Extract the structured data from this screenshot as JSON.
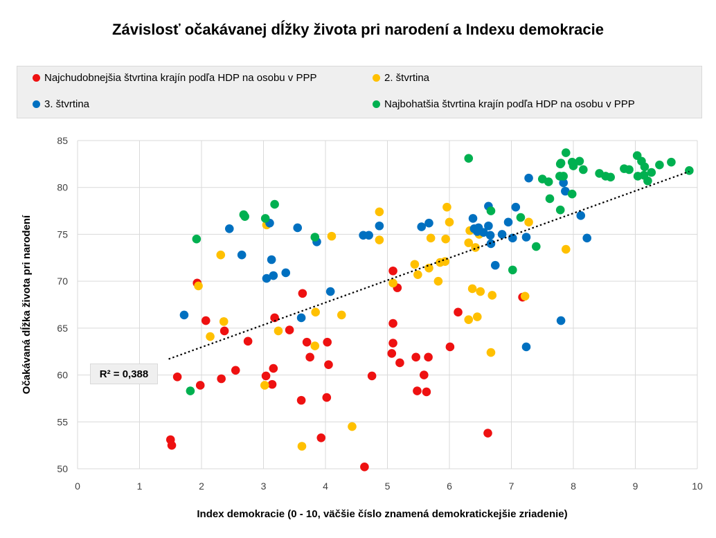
{
  "chart_data": {
    "type": "scatter",
    "title": "Závislosť očakávanej dĺžky života pri narodení a Indexu demokracie",
    "xlabel": "Index demokracie (0 - 10, väčšie číslo znamená demokratickejšie zriadenie)",
    "ylabel": "Očakávaná dĺžka života pri narodení",
    "xlim": [
      0,
      10
    ],
    "ylim": [
      50,
      85
    ],
    "xticks": [
      "0",
      "1",
      "2",
      "3",
      "4",
      "5",
      "6",
      "7",
      "8",
      "9",
      "10"
    ],
    "yticks": [
      "50",
      "55",
      "60",
      "65",
      "70",
      "75",
      "80",
      "85"
    ],
    "grid": true,
    "legend_position": "top",
    "r2_label": "R² = 0,388",
    "trendline": {
      "x": [
        1.47,
        9.87
      ],
      "y": [
        61.7,
        81.7
      ]
    },
    "series": [
      {
        "name": "Najchudobnejšia štvrtina krajín podľa HDP na osobu v PPP",
        "color": "#ee1111",
        "points": [
          [
            1.5,
            53.1
          ],
          [
            1.52,
            52.5
          ],
          [
            1.61,
            59.8
          ],
          [
            1.93,
            69.8
          ],
          [
            1.98,
            58.9
          ],
          [
            2.07,
            65.8
          ],
          [
            2.32,
            59.6
          ],
          [
            2.37,
            64.7
          ],
          [
            2.55,
            60.5
          ],
          [
            2.75,
            63.6
          ],
          [
            3.04,
            59.9
          ],
          [
            3.14,
            59.0
          ],
          [
            3.16,
            60.7
          ],
          [
            3.18,
            66.1
          ],
          [
            3.42,
            64.8
          ],
          [
            3.61,
            57.3
          ],
          [
            3.63,
            68.7
          ],
          [
            3.7,
            63.5
          ],
          [
            3.75,
            61.9
          ],
          [
            3.93,
            53.3
          ],
          [
            4.02,
            57.6
          ],
          [
            4.03,
            63.5
          ],
          [
            4.05,
            61.1
          ],
          [
            4.63,
            50.2
          ],
          [
            4.75,
            59.9
          ],
          [
            5.07,
            62.3
          ],
          [
            5.09,
            71.1
          ],
          [
            5.09,
            65.5
          ],
          [
            5.09,
            63.4
          ],
          [
            5.16,
            69.3
          ],
          [
            5.2,
            61.3
          ],
          [
            5.46,
            61.9
          ],
          [
            5.48,
            58.3
          ],
          [
            5.59,
            60.0
          ],
          [
            5.63,
            58.2
          ],
          [
            5.66,
            61.9
          ],
          [
            6.01,
            63.0
          ],
          [
            6.14,
            66.7
          ],
          [
            6.62,
            53.8
          ],
          [
            7.18,
            68.3
          ]
        ]
      },
      {
        "name": "2. štvrtina",
        "color": "#ffc000",
        "points": [
          [
            1.95,
            69.5
          ],
          [
            2.14,
            64.1
          ],
          [
            2.31,
            72.8
          ],
          [
            2.36,
            65.7
          ],
          [
            3.02,
            58.9
          ],
          [
            3.05,
            76.0
          ],
          [
            3.24,
            64.7
          ],
          [
            3.62,
            52.4
          ],
          [
            3.83,
            63.1
          ],
          [
            3.84,
            66.7
          ],
          [
            4.1,
            74.8
          ],
          [
            4.26,
            66.4
          ],
          [
            4.43,
            54.5
          ],
          [
            4.87,
            77.4
          ],
          [
            4.87,
            74.4
          ],
          [
            5.09,
            69.8
          ],
          [
            5.44,
            71.8
          ],
          [
            5.49,
            70.7
          ],
          [
            5.67,
            71.4
          ],
          [
            5.7,
            74.6
          ],
          [
            5.82,
            70.0
          ],
          [
            5.85,
            72.0
          ],
          [
            5.93,
            72.1
          ],
          [
            5.94,
            74.5
          ],
          [
            5.96,
            77.9
          ],
          [
            6.0,
            76.3
          ],
          [
            6.31,
            74.1
          ],
          [
            6.31,
            65.9
          ],
          [
            6.33,
            75.4
          ],
          [
            6.37,
            69.2
          ],
          [
            6.42,
            73.6
          ],
          [
            6.45,
            66.2
          ],
          [
            6.5,
            68.9
          ],
          [
            6.67,
            62.4
          ],
          [
            6.69,
            68.5
          ],
          [
            7.22,
            68.4
          ],
          [
            7.28,
            76.3
          ],
          [
            7.88,
            73.4
          ],
          [
            6.48,
            75.0
          ]
        ]
      },
      {
        "name": "3. štvrtina",
        "color": "#0070c0",
        "points": [
          [
            1.72,
            66.4
          ],
          [
            2.45,
            75.6
          ],
          [
            2.65,
            72.8
          ],
          [
            3.05,
            70.3
          ],
          [
            3.1,
            76.2
          ],
          [
            3.13,
            72.3
          ],
          [
            3.16,
            70.6
          ],
          [
            3.36,
            70.9
          ],
          [
            3.55,
            75.7
          ],
          [
            3.61,
            66.1
          ],
          [
            3.86,
            74.2
          ],
          [
            4.08,
            68.9
          ],
          [
            4.61,
            74.9
          ],
          [
            4.7,
            74.9
          ],
          [
            4.87,
            75.9
          ],
          [
            5.55,
            75.8
          ],
          [
            5.67,
            76.2
          ],
          [
            6.38,
            76.7
          ],
          [
            6.4,
            75.6
          ],
          [
            6.45,
            75.3
          ],
          [
            6.47,
            75.7
          ],
          [
            6.55,
            75.2
          ],
          [
            6.63,
            78.0
          ],
          [
            6.63,
            75.9
          ],
          [
            6.67,
            74.0
          ],
          [
            6.74,
            71.7
          ],
          [
            6.85,
            75.0
          ],
          [
            6.95,
            76.3
          ],
          [
            7.02,
            74.6
          ],
          [
            7.07,
            77.9
          ],
          [
            7.24,
            74.7
          ],
          [
            7.24,
            63.0
          ],
          [
            7.28,
            81.0
          ],
          [
            7.8,
            65.8
          ],
          [
            7.84,
            80.5
          ],
          [
            7.87,
            79.6
          ],
          [
            8.12,
            77.0
          ],
          [
            8.22,
            74.6
          ],
          [
            6.66,
            74.9
          ]
        ]
      },
      {
        "name": "Najbohatšia štvrtina krajín podľa HDP na osobu v PPP",
        "color": "#00b050",
        "points": [
          [
            1.82,
            58.3
          ],
          [
            1.92,
            74.5
          ],
          [
            2.68,
            77.1
          ],
          [
            2.7,
            76.9
          ],
          [
            3.03,
            76.7
          ],
          [
            3.18,
            78.2
          ],
          [
            3.83,
            74.7
          ],
          [
            6.31,
            83.1
          ],
          [
            6.67,
            77.5
          ],
          [
            7.02,
            71.2
          ],
          [
            7.15,
            76.8
          ],
          [
            7.4,
            73.7
          ],
          [
            7.5,
            80.9
          ],
          [
            7.6,
            80.6
          ],
          [
            7.62,
            78.8
          ],
          [
            7.78,
            81.2
          ],
          [
            7.79,
            82.5
          ],
          [
            7.8,
            82.6
          ],
          [
            7.79,
            77.6
          ],
          [
            7.84,
            81.2
          ],
          [
            7.88,
            83.7
          ],
          [
            7.98,
            79.3
          ],
          [
            7.98,
            82.7
          ],
          [
            8.0,
            82.3
          ],
          [
            8.1,
            82.8
          ],
          [
            8.16,
            81.9
          ],
          [
            8.42,
            81.5
          ],
          [
            8.52,
            81.2
          ],
          [
            8.6,
            81.1
          ],
          [
            8.82,
            82.0
          ],
          [
            8.9,
            81.9
          ],
          [
            9.03,
            83.4
          ],
          [
            9.04,
            81.2
          ],
          [
            9.1,
            82.8
          ],
          [
            9.14,
            81.3
          ],
          [
            9.15,
            82.2
          ],
          [
            9.2,
            80.7
          ],
          [
            9.26,
            81.6
          ],
          [
            9.39,
            82.4
          ],
          [
            9.58,
            82.7
          ],
          [
            9.87,
            81.8
          ]
        ]
      }
    ]
  }
}
